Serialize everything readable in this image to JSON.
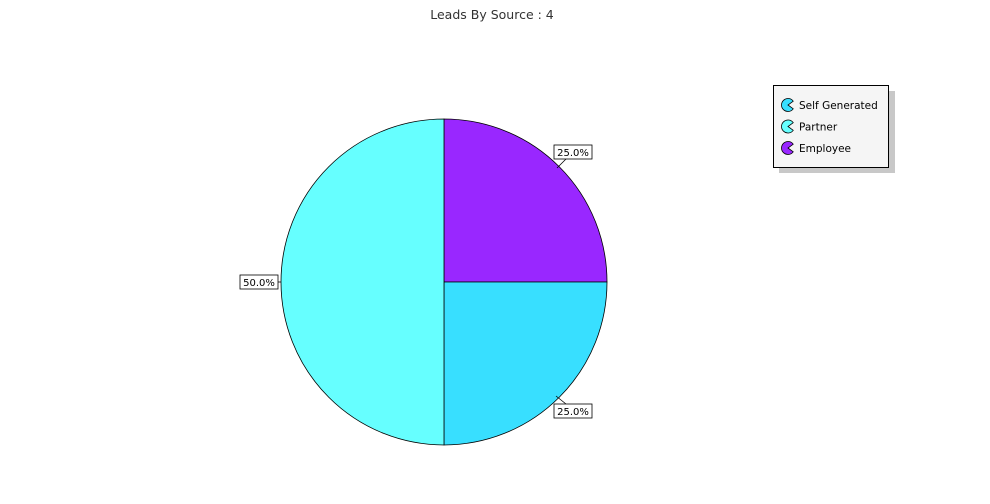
{
  "chart_data": {
    "type": "pie",
    "title": "Leads By Source : 4",
    "categories": [
      "Self Generated",
      "Partner",
      "Employee"
    ],
    "values": [
      1,
      2,
      1
    ],
    "percent_labels": [
      "25.0%",
      "50.0%",
      "25.0%"
    ],
    "colors": [
      "#38DFFF",
      "#66FFFF",
      "#9927FF"
    ],
    "legend": {
      "placement": "top-right",
      "entries": [
        "Self Generated",
        "Partner",
        "Employee"
      ]
    }
  }
}
